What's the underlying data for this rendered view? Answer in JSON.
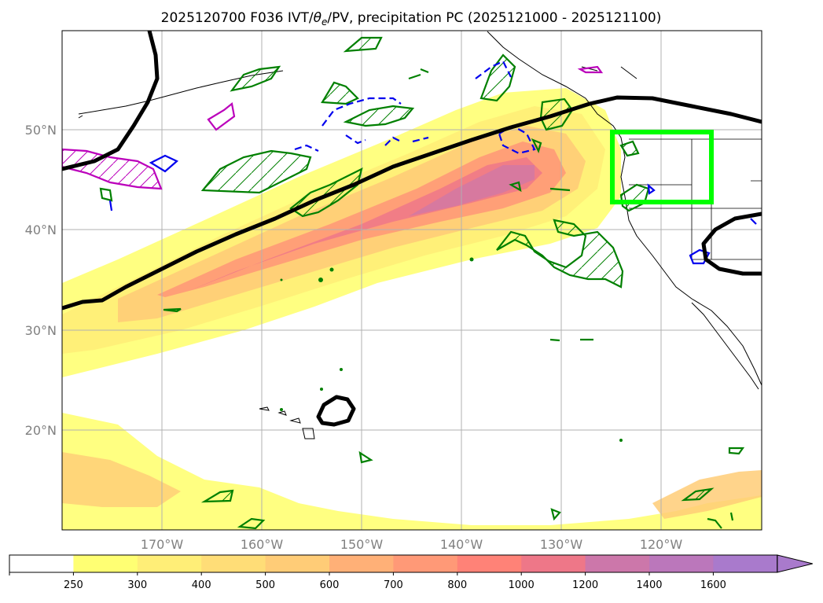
{
  "title": {
    "prefix": "2025120700 F036 IVT/",
    "theta": "θ",
    "theta_sub": "e",
    "suffix": "/PV, precipitation PC (2025121000 - 2025121100)"
  },
  "map": {
    "lat_labels": [
      "50°N",
      "40°N",
      "30°N",
      "20°N"
    ],
    "lon_labels": [
      "170°W",
      "160°W",
      "150°W",
      "140°W",
      "130°W",
      "120°W"
    ],
    "lat_values": [
      50,
      40,
      30,
      20
    ],
    "lon_values": [
      -170,
      -160,
      -150,
      -140,
      -130,
      -120
    ],
    "extent": {
      "lon_min": -180,
      "lon_max": -110,
      "lat_min": 10,
      "lat_max": 60
    },
    "highlight_box": {
      "lon_min": -125,
      "lon_max": -115,
      "lat_min": 42.5,
      "lat_max": 50,
      "color": "#00ff00"
    },
    "contour_colors": {
      "ivt_line": "#000000",
      "theta_e": "#008000",
      "pv_pos": "#bb00bb",
      "pv_neg": "#0000ee"
    }
  },
  "colorbar": {
    "levels": [
      "250",
      "300",
      "400",
      "500",
      "600",
      "700",
      "800",
      "1000",
      "1200",
      "1400",
      "1600"
    ],
    "colors": [
      "#ffffff",
      "#ffff73",
      "#ffee77",
      "#ffdd77",
      "#ffcc77",
      "#ffb077",
      "#ff9977",
      "#ff8277",
      "#ee7788",
      "#cc77aa",
      "#bb77bb",
      "#a97acc"
    ]
  }
}
